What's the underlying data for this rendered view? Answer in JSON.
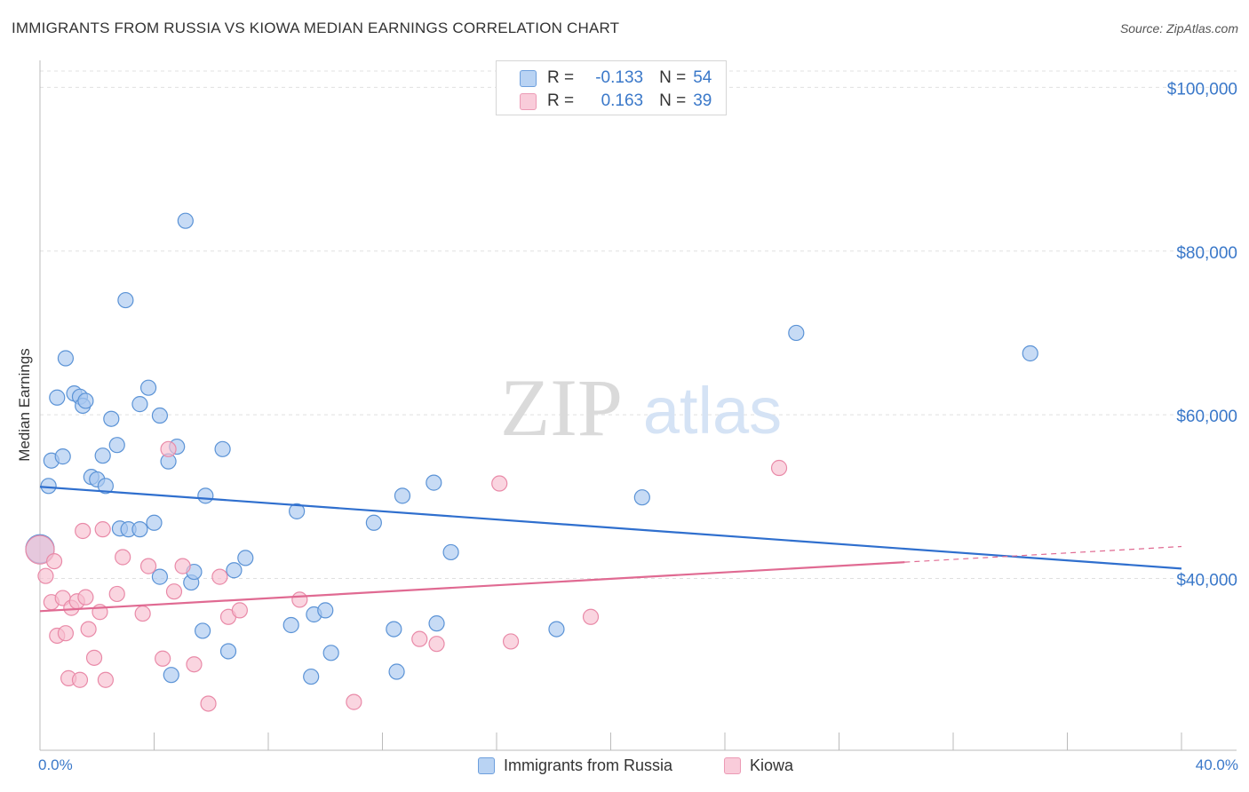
{
  "title": "IMMIGRANTS FROM RUSSIA VS KIOWA MEDIAN EARNINGS CORRELATION CHART",
  "source": "Source: ZipAtlas.com",
  "watermark": {
    "zip": "ZIP",
    "atlas": "atlas"
  },
  "legend": {
    "rows": [
      {
        "r_label": "R =",
        "r_value": "-0.133",
        "n_label": "N =",
        "n_value": "54"
      },
      {
        "r_label": "R =",
        "r_value": "0.163",
        "n_label": "N =",
        "n_value": "39"
      }
    ]
  },
  "colors": {
    "russia_fill": "#a9c8f0",
    "russia_stroke": "#5b93d6",
    "russia_line": "#2f6fce",
    "kiowa_fill": "#f7bfd0",
    "kiowa_stroke": "#e98aa8",
    "kiowa_line": "#e06a92",
    "grid": "#e0e0e0",
    "axis_label": "#3a78c9"
  },
  "chart_data": {
    "type": "scatter",
    "title": "IMMIGRANTS FROM RUSSIA VS KIOWA MEDIAN EARNINGS CORRELATION CHART",
    "xlabel": "",
    "ylabel": "Median Earnings",
    "xlim": [
      0,
      40
    ],
    "ylim": [
      19000,
      102000
    ],
    "x_tick_labels": [
      "0.0%",
      "40.0%"
    ],
    "y_ticks": [
      {
        "value": 40000,
        "label": "$40,000"
      },
      {
        "value": 60000,
        "label": "$60,000"
      },
      {
        "value": 80000,
        "label": "$80,000"
      },
      {
        "value": 100000,
        "label": "$100,000"
      }
    ],
    "series": [
      {
        "name": "Immigrants from Russia",
        "r": -0.133,
        "n": 54,
        "trend": {
          "x0": 0,
          "y0": 51200,
          "x1": 40,
          "y1": 41200,
          "dashed_from": null
        },
        "points": [
          {
            "x": 0.0,
            "y": 43600,
            "big": true
          },
          {
            "x": 0.3,
            "y": 51300
          },
          {
            "x": 0.4,
            "y": 54400
          },
          {
            "x": 0.6,
            "y": 62100
          },
          {
            "x": 0.8,
            "y": 54900
          },
          {
            "x": 0.9,
            "y": 66900
          },
          {
            "x": 1.2,
            "y": 62600
          },
          {
            "x": 1.4,
            "y": 62200
          },
          {
            "x": 1.5,
            "y": 61100
          },
          {
            "x": 1.6,
            "y": 61700
          },
          {
            "x": 1.8,
            "y": 52400
          },
          {
            "x": 2.0,
            "y": 52100
          },
          {
            "x": 2.2,
            "y": 55000
          },
          {
            "x": 2.3,
            "y": 51300
          },
          {
            "x": 2.5,
            "y": 59500
          },
          {
            "x": 2.7,
            "y": 56300
          },
          {
            "x": 2.8,
            "y": 46100
          },
          {
            "x": 3.0,
            "y": 74000
          },
          {
            "x": 3.1,
            "y": 46000
          },
          {
            "x": 3.5,
            "y": 46000
          },
          {
            "x": 3.5,
            "y": 61300
          },
          {
            "x": 3.8,
            "y": 63300
          },
          {
            "x": 4.0,
            "y": 46800
          },
          {
            "x": 4.2,
            "y": 40200
          },
          {
            "x": 4.2,
            "y": 59900
          },
          {
            "x": 4.5,
            "y": 54300
          },
          {
            "x": 4.6,
            "y": 28200
          },
          {
            "x": 4.8,
            "y": 56100
          },
          {
            "x": 5.1,
            "y": 83700
          },
          {
            "x": 5.3,
            "y": 39500
          },
          {
            "x": 5.4,
            "y": 40800
          },
          {
            "x": 5.7,
            "y": 33600
          },
          {
            "x": 5.8,
            "y": 50100
          },
          {
            "x": 6.4,
            "y": 55800
          },
          {
            "x": 6.6,
            "y": 31100
          },
          {
            "x": 6.8,
            "y": 41000
          },
          {
            "x": 7.2,
            "y": 42500
          },
          {
            "x": 8.8,
            "y": 34300
          },
          {
            "x": 9.0,
            "y": 48200
          },
          {
            "x": 9.5,
            "y": 28000
          },
          {
            "x": 9.6,
            "y": 35600
          },
          {
            "x": 10.0,
            "y": 36100
          },
          {
            "x": 10.2,
            "y": 30900
          },
          {
            "x": 11.7,
            "y": 46800
          },
          {
            "x": 12.4,
            "y": 33800
          },
          {
            "x": 12.5,
            "y": 28600
          },
          {
            "x": 12.7,
            "y": 50100
          },
          {
            "x": 13.8,
            "y": 51700
          },
          {
            "x": 13.9,
            "y": 34500
          },
          {
            "x": 14.4,
            "y": 43200
          },
          {
            "x": 18.1,
            "y": 33800
          },
          {
            "x": 21.1,
            "y": 49900
          },
          {
            "x": 26.5,
            "y": 70000
          },
          {
            "x": 34.7,
            "y": 67500
          }
        ]
      },
      {
        "name": "Kiowa",
        "r": 0.163,
        "n": 39,
        "trend": {
          "x0": 0,
          "y0": 36000,
          "x1": 40,
          "y1": 43900,
          "dashed_from": 30.3
        },
        "points": [
          {
            "x": 0.0,
            "y": 43500,
            "big": true
          },
          {
            "x": 0.2,
            "y": 40300
          },
          {
            "x": 0.4,
            "y": 37100
          },
          {
            "x": 0.5,
            "y": 42100
          },
          {
            "x": 0.6,
            "y": 33000
          },
          {
            "x": 0.8,
            "y": 37600
          },
          {
            "x": 0.9,
            "y": 33300
          },
          {
            "x": 1.0,
            "y": 27800
          },
          {
            "x": 1.1,
            "y": 36400
          },
          {
            "x": 1.3,
            "y": 37200
          },
          {
            "x": 1.4,
            "y": 27600
          },
          {
            "x": 1.5,
            "y": 45800
          },
          {
            "x": 1.6,
            "y": 37700
          },
          {
            "x": 1.7,
            "y": 33800
          },
          {
            "x": 1.9,
            "y": 30300
          },
          {
            "x": 2.1,
            "y": 35900
          },
          {
            "x": 2.2,
            "y": 46000
          },
          {
            "x": 2.3,
            "y": 27600
          },
          {
            "x": 2.7,
            "y": 38100
          },
          {
            "x": 2.9,
            "y": 42600
          },
          {
            "x": 3.6,
            "y": 35700
          },
          {
            "x": 3.8,
            "y": 41500
          },
          {
            "x": 4.3,
            "y": 30200
          },
          {
            "x": 4.5,
            "y": 55800
          },
          {
            "x": 4.7,
            "y": 38400
          },
          {
            "x": 5.0,
            "y": 41500
          },
          {
            "x": 5.4,
            "y": 29500
          },
          {
            "x": 5.9,
            "y": 24700
          },
          {
            "x": 6.3,
            "y": 40200
          },
          {
            "x": 6.6,
            "y": 35300
          },
          {
            "x": 7.0,
            "y": 36100
          },
          {
            "x": 9.1,
            "y": 37400
          },
          {
            "x": 11.0,
            "y": 24900
          },
          {
            "x": 13.3,
            "y": 32600
          },
          {
            "x": 13.9,
            "y": 32000
          },
          {
            "x": 16.1,
            "y": 51600
          },
          {
            "x": 16.5,
            "y": 32300
          },
          {
            "x": 19.3,
            "y": 35300
          },
          {
            "x": 25.9,
            "y": 53500
          }
        ]
      }
    ]
  },
  "bottom_legend": [
    "Immigrants from Russia",
    "Kiowa"
  ]
}
